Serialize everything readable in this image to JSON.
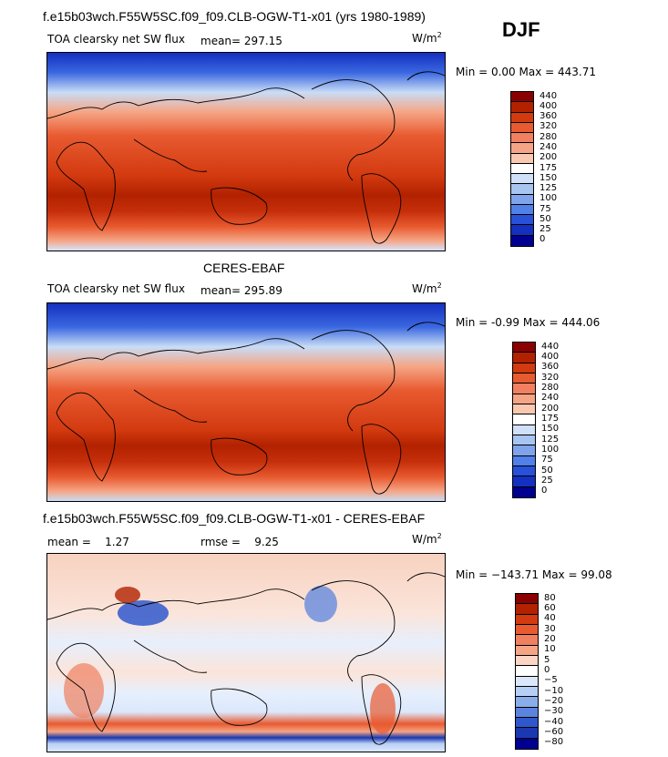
{
  "header": {
    "title": "f.e15b03wch.F55W5SC.f09_f09.CLB-OGW-T1-x01 (yrs 1980-1989)",
    "season": "DJF"
  },
  "panels": [
    {
      "subtitle": "TOA clearsky net SW flux",
      "mean_label": "mean=",
      "mean_value": "297.15",
      "units": "W/m",
      "units_sup": "2",
      "minmax": "Min =    0.00 Max = 443.71",
      "colorbar_labels": [
        "440",
        "400",
        "360",
        "320",
        "280",
        "240",
        "200",
        "175",
        "150",
        "125",
        "100",
        "75",
        "50",
        "25",
        "0"
      ]
    },
    {
      "title": "CERES-EBAF",
      "subtitle": "TOA clearsky net SW flux",
      "mean_label": "mean=",
      "mean_value": "295.89",
      "units": "W/m",
      "units_sup": "2",
      "minmax": "Min =   -0.99 Max = 444.06",
      "colorbar_labels": [
        "440",
        "400",
        "360",
        "320",
        "280",
        "240",
        "200",
        "175",
        "150",
        "125",
        "100",
        "75",
        "50",
        "25",
        "0"
      ]
    },
    {
      "title": "f.e15b03wch.F55W5SC.f09_f09.CLB-OGW-T1-x01 - CERES-EBAF",
      "mean_label": "mean =",
      "mean_value": "1.27",
      "rmse_label": "rmse =",
      "rmse_value": "9.25",
      "units": "W/m",
      "units_sup": "2",
      "minmax": "Min = −143.71 Max =  99.08",
      "colorbar_labels": [
        "80",
        "60",
        "40",
        "30",
        "20",
        "10",
        "5",
        "0",
        "−5",
        "−10",
        "−20",
        "−30",
        "−40",
        "−60",
        "−80"
      ]
    }
  ],
  "colors": {
    "flux_scale": [
      "#8b0000",
      "#b22200",
      "#d33a10",
      "#e85a30",
      "#f08060",
      "#f5a585",
      "#fac8b0",
      "#ffffff",
      "#cfe0f8",
      "#a8c4f0",
      "#80a4ec",
      "#5080e8",
      "#2850d8",
      "#1430c0",
      "#000090"
    ],
    "diff_scale": [
      "#8b0000",
      "#b22200",
      "#d33a10",
      "#e85a30",
      "#f08060",
      "#f5a585",
      "#fbd5c5",
      "#ffffff",
      "#dbe8fc",
      "#b8cff5",
      "#8aaeea",
      "#5c84de",
      "#3058cc",
      "#1a38b0",
      "#000090"
    ]
  }
}
